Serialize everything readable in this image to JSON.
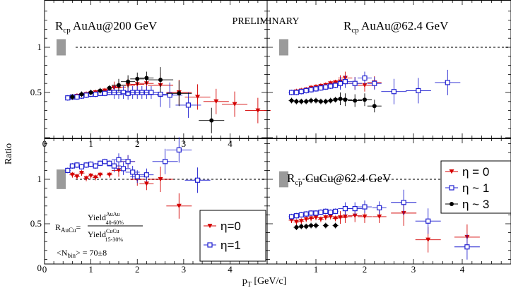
{
  "figure": {
    "ylabel": "Ratio",
    "xlabel": "pT [GeV/c]",
    "preliminary": "PRELIMINARY",
    "formula": {
      "lhs": "R",
      "lhs_sub": "AuCu",
      "num": "Yield",
      "num_sup": "AuAu",
      "num_sub": "40-60%",
      "den": "Yield",
      "den_sup": "CuCu",
      "den_sub": "15-30%",
      "nbin": "<N",
      "nbin_sub": "bin",
      "nbin_val": "> = 70±8"
    }
  },
  "chart_data": [
    {
      "panel": "top-left",
      "title": "Rcp AuAu@200 GeV",
      "type": "scatter",
      "xlim": [
        0,
        4.8
      ],
      "ylim": [
        0,
        1.4
      ],
      "x_ticks": [
        0,
        1,
        2,
        3,
        4
      ],
      "y_ticks": [
        0.5,
        1
      ],
      "reference_line": 1,
      "norm_box": {
        "center": 1,
        "halfwidth": 0.09
      },
      "series": [
        {
          "name": "η = 0",
          "marker": "triangle-down",
          "color": "#d40000",
          "x": [
            0.6,
            0.7,
            0.8,
            0.9,
            1.0,
            1.1,
            1.2,
            1.3,
            1.4,
            1.5,
            1.6,
            1.8,
            2.0,
            2.2,
            2.5,
            2.9,
            3.3,
            3.7,
            4.1,
            4.6
          ],
          "y": [
            0.45,
            0.46,
            0.47,
            0.48,
            0.49,
            0.5,
            0.51,
            0.52,
            0.53,
            0.55,
            0.56,
            0.58,
            0.59,
            0.6,
            0.58,
            0.5,
            0.45,
            0.4,
            0.37,
            0.3
          ]
        },
        {
          "name": "η ~ 1",
          "marker": "open-square",
          "color": "#2020d0",
          "x": [
            0.5,
            0.6,
            0.7,
            0.8,
            0.9,
            1.0,
            1.1,
            1.2,
            1.3,
            1.4,
            1.5,
            1.6,
            1.7,
            1.8,
            1.9,
            2.0,
            2.1,
            2.2,
            2.3,
            2.5,
            2.7,
            3.1
          ],
          "y": [
            0.44,
            0.45,
            0.45,
            0.46,
            0.47,
            0.48,
            0.48,
            0.49,
            0.49,
            0.5,
            0.5,
            0.5,
            0.5,
            0.49,
            0.5,
            0.5,
            0.5,
            0.5,
            0.5,
            0.48,
            0.47,
            0.36
          ]
        },
        {
          "name": "η ~ 3",
          "marker": "filled-circle",
          "color": "#000000",
          "x": [
            0.6,
            0.8,
            1.0,
            1.2,
            1.4,
            1.6,
            1.8,
            2.0,
            2.2,
            2.5,
            2.9,
            3.6
          ],
          "y": [
            0.45,
            0.48,
            0.5,
            0.52,
            0.55,
            0.58,
            0.62,
            0.65,
            0.66,
            0.64,
            0.49,
            0.19
          ]
        }
      ]
    },
    {
      "panel": "top-right",
      "title": "Rcp AuAu@62.4 GeV",
      "type": "scatter",
      "xlim": [
        0,
        5
      ],
      "ylim": [
        0,
        1.4
      ],
      "reference_line": 1,
      "norm_box": {
        "center": 1,
        "halfwidth": 0.09
      },
      "series": [
        {
          "name": "η = 0",
          "marker": "triangle-down",
          "color": "#d40000",
          "x": [
            0.6,
            0.7,
            0.8,
            0.9,
            1.0,
            1.1,
            1.2,
            1.3,
            1.4,
            1.5,
            1.6,
            1.8,
            2.0,
            2.2
          ],
          "y": [
            0.51,
            0.52,
            0.53,
            0.55,
            0.56,
            0.57,
            0.58,
            0.6,
            0.61,
            0.62,
            0.66,
            0.6,
            0.58,
            0.61
          ]
        },
        {
          "name": "η ~ 1",
          "marker": "open-square",
          "color": "#2020d0",
          "x": [
            0.5,
            0.6,
            0.7,
            0.8,
            0.9,
            1.0,
            1.1,
            1.2,
            1.3,
            1.4,
            1.5,
            1.6,
            1.8,
            2.0,
            2.2,
            2.6,
            3.1,
            3.7
          ],
          "y": [
            0.5,
            0.5,
            0.51,
            0.52,
            0.53,
            0.54,
            0.55,
            0.56,
            0.57,
            0.58,
            0.6,
            0.62,
            0.6,
            0.66,
            0.6,
            0.51,
            0.52,
            0.61
          ]
        },
        {
          "name": "η ~ 3",
          "marker": "filled-circle",
          "color": "#000000",
          "x": [
            0.5,
            0.6,
            0.7,
            0.8,
            0.9,
            1.0,
            1.1,
            1.2,
            1.3,
            1.4,
            1.5,
            1.6,
            1.8,
            2.0,
            2.2
          ],
          "y": [
            0.41,
            0.4,
            0.4,
            0.4,
            0.41,
            0.41,
            0.4,
            0.4,
            0.41,
            0.42,
            0.43,
            0.42,
            0.41,
            0.42,
            0.35
          ]
        }
      ]
    },
    {
      "panel": "bottom-left",
      "title": "",
      "type": "scatter",
      "xlim": [
        0,
        4.8
      ],
      "ylim": [
        0,
        1.4
      ],
      "x_ticks": [
        0,
        1,
        2,
        3,
        4
      ],
      "y_ticks": [
        0,
        0.5,
        1
      ],
      "reference_line": 1,
      "norm_box": {
        "center": 1,
        "halfwidth": 0.11
      },
      "series": [
        {
          "name": "η=0",
          "marker": "triangle-down",
          "color": "#d40000",
          "x": [
            0.6,
            0.7,
            0.8,
            0.9,
            1.0,
            1.1,
            1.2,
            1.4,
            1.6,
            1.8,
            2.0,
            2.2,
            2.5,
            2.9
          ],
          "y": [
            1.05,
            1.03,
            1.07,
            1.01,
            1.04,
            1.02,
            1.05,
            1.05,
            1.1,
            1.2,
            1.0,
            0.95,
            1.0,
            0.7
          ]
        },
        {
          "name": "η=1",
          "marker": "open-square",
          "color": "#2020d0",
          "x": [
            0.5,
            0.6,
            0.7,
            0.8,
            0.9,
            1.0,
            1.1,
            1.2,
            1.3,
            1.4,
            1.5,
            1.6,
            1.7,
            1.8,
            1.9,
            2.0,
            2.2,
            2.6,
            2.9,
            3.3
          ],
          "y": [
            1.1,
            1.15,
            1.16,
            1.14,
            1.16,
            1.17,
            1.15,
            1.18,
            1.2,
            1.18,
            1.15,
            1.22,
            1.12,
            1.2,
            1.08,
            1.03,
            1.05,
            1.2,
            1.33,
            0.99
          ]
        }
      ]
    },
    {
      "panel": "bottom-right",
      "title": "Rcp CuCu@62.4 GeV",
      "type": "scatter",
      "xlim": [
        0,
        5
      ],
      "ylim": [
        0,
        1.4
      ],
      "x_ticks": [
        1,
        2,
        3,
        4
      ],
      "reference_line": 1,
      "norm_box": {
        "center": 1,
        "halfwidth": 0.09
      },
      "series": [
        {
          "name": "η = 0",
          "marker": "triangle-down",
          "color": "#d40000",
          "x": [
            0.5,
            0.6,
            0.7,
            0.8,
            0.9,
            1.0,
            1.1,
            1.2,
            1.3,
            1.4,
            1.5,
            1.6,
            1.8,
            2.0,
            2.3,
            2.8,
            3.3,
            4.1
          ],
          "y": [
            0.54,
            0.52,
            0.53,
            0.55,
            0.56,
            0.57,
            0.55,
            0.57,
            0.58,
            0.56,
            0.57,
            0.58,
            0.59,
            0.58,
            0.58,
            0.62,
            0.32,
            0.35
          ]
        },
        {
          "name": "η ~ 1",
          "marker": "open-square",
          "color": "#2020d0",
          "x": [
            0.5,
            0.6,
            0.7,
            0.8,
            0.9,
            1.0,
            1.1,
            1.2,
            1.3,
            1.4,
            1.6,
            1.8,
            2.0,
            2.3,
            2.8,
            3.3,
            4.1
          ],
          "y": [
            0.58,
            0.59,
            0.6,
            0.61,
            0.62,
            0.62,
            0.63,
            0.64,
            0.63,
            0.64,
            0.67,
            0.67,
            0.69,
            0.68,
            0.74,
            0.53,
            0.24
          ]
        },
        {
          "name": "η ~ 3",
          "marker": "filled-circle",
          "color": "#000000",
          "x": [
            0.6,
            0.7,
            0.8,
            0.9,
            1.0,
            1.2,
            1.4
          ],
          "y": [
            0.46,
            0.47,
            0.47,
            0.48,
            0.48,
            0.48,
            0.48
          ]
        }
      ]
    }
  ],
  "legends": {
    "bottom-right": {
      "entries": [
        "η = 0",
        "η ~ 1",
        "η ~ 3"
      ]
    },
    "bottom-left": {
      "entries": [
        "η=0",
        "η=1"
      ]
    }
  }
}
